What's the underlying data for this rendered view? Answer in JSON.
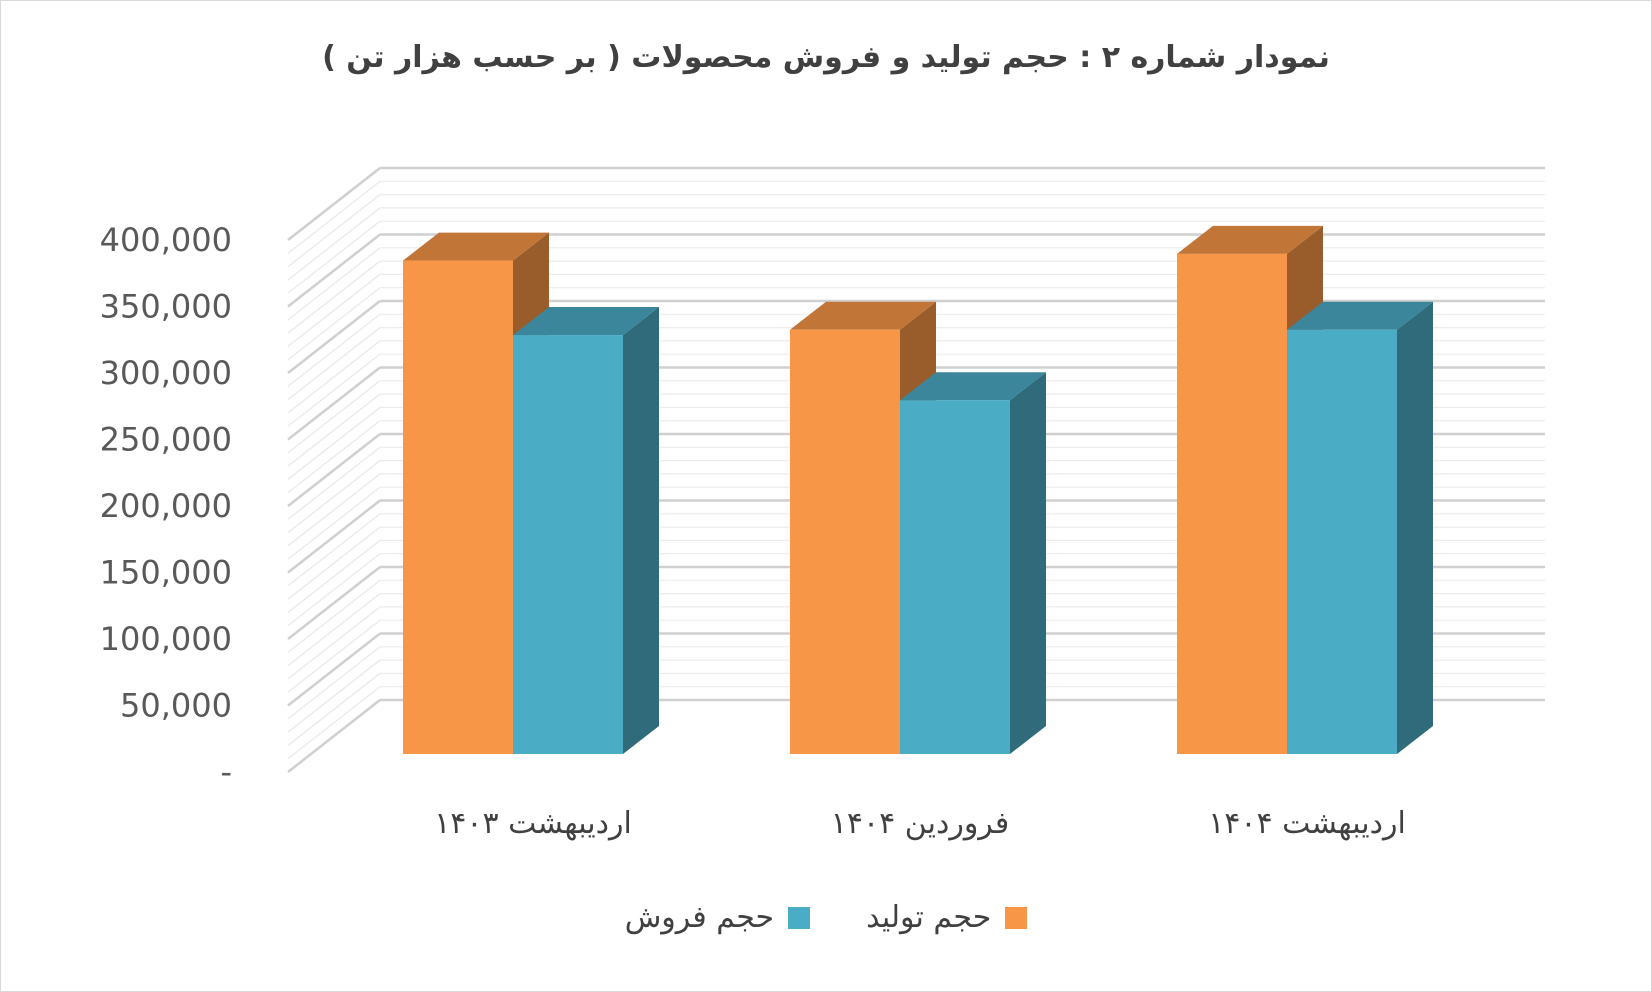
{
  "chart_data": {
    "type": "bar",
    "title": "نمودار شماره ۲ : حجم تولید و فروش محصولات ( بر حسب هزار تن )",
    "categories": [
      "اردیبهشت ۱۴۰۳",
      "فروردین ۱۴۰۴",
      "اردیبهشت ۱۴۰۴"
    ],
    "series": [
      {
        "name": "حجم تولید",
        "values": [
          371000,
          319000,
          376000
        ],
        "color": "#f79646"
      },
      {
        "name": "حجم فروش",
        "values": [
          315000,
          266000,
          319000
        ],
        "color": "#4bacc6"
      }
    ],
    "ylim": [
      0,
      400000
    ],
    "yticks": [
      "-",
      "50,000",
      "100,000",
      "150,000",
      "200,000",
      "250,000",
      "300,000",
      "350,000",
      "400,000"
    ],
    "grid": true,
    "legend_position": "bottom",
    "style": "3d-clustered"
  }
}
